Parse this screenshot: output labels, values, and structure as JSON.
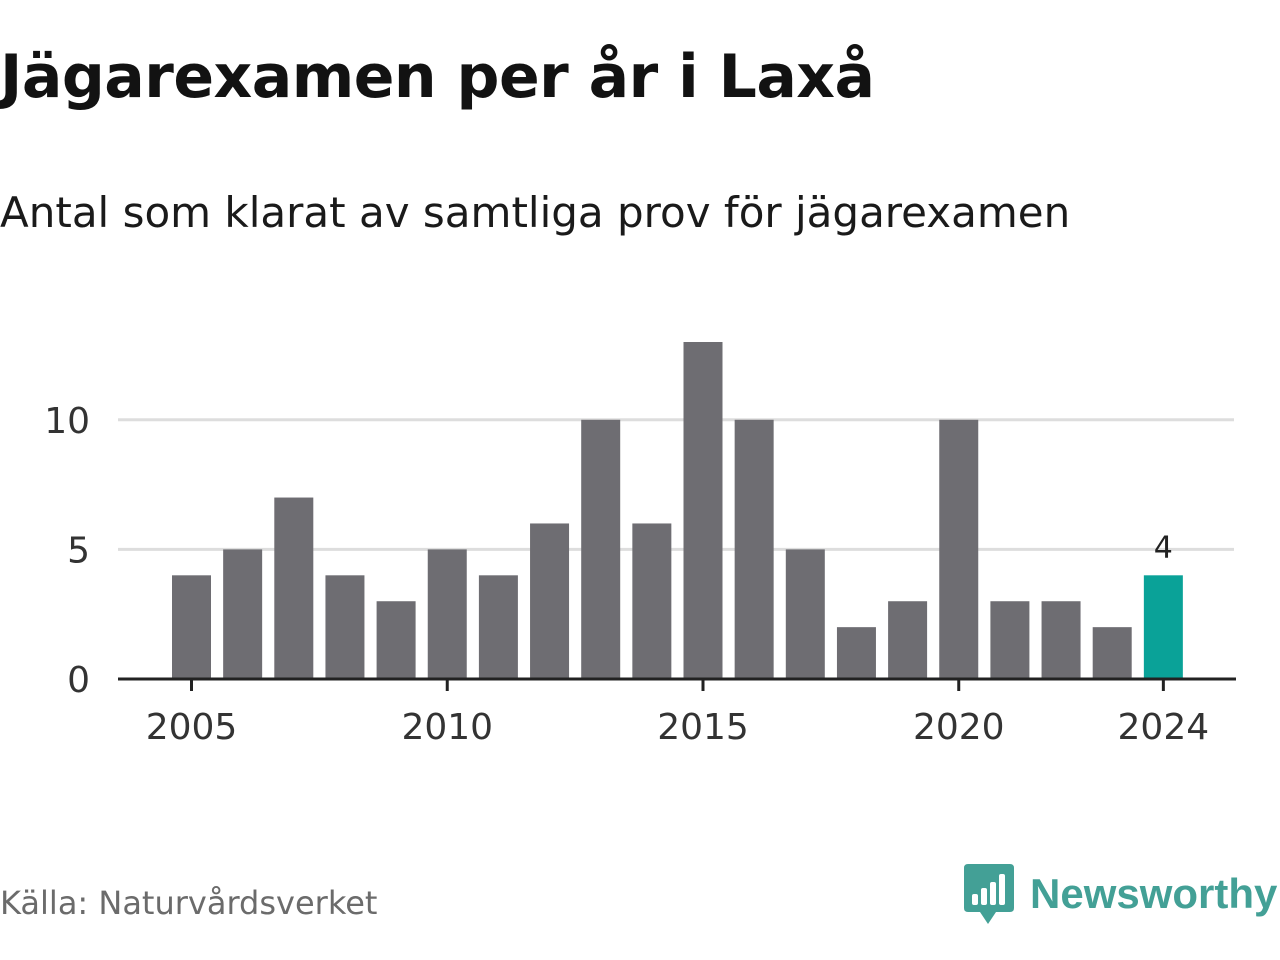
{
  "title": "Jägarexamen per år i Laxå",
  "subtitle": "Antal som klarat av samtliga prov för jägarexamen",
  "source": "Källa: Naturvårdsverket",
  "brand": {
    "name": "Newsworthy",
    "color": "#43A096",
    "icon": "newsworthy-logo-icon"
  },
  "colors": {
    "bar": "#6E6D72",
    "highlight": "#0AA298",
    "grid": "#DDDDDD",
    "axis": "#222222",
    "tick_text": "#333333"
  },
  "chart_data": {
    "type": "bar",
    "categories": [
      "2005",
      "2006",
      "2007",
      "2008",
      "2009",
      "2010",
      "2011",
      "2012",
      "2013",
      "2014",
      "2015",
      "2016",
      "2017",
      "2018",
      "2019",
      "2020",
      "2021",
      "2022",
      "2023",
      "2024"
    ],
    "values": [
      4,
      5,
      7,
      4,
      3,
      5,
      4,
      6,
      10,
      6,
      13,
      10,
      5,
      2,
      3,
      10,
      3,
      3,
      2,
      4
    ],
    "highlight_category": "2024",
    "data_labels": [
      {
        "category": "2024",
        "text": "4"
      }
    ],
    "x_ticks": [
      "2005",
      "2010",
      "2015",
      "2020",
      "2024"
    ],
    "y_ticks": [
      0,
      5,
      10
    ],
    "ylim": [
      0,
      13
    ],
    "grid": true,
    "xlabel": "",
    "ylabel": ""
  }
}
